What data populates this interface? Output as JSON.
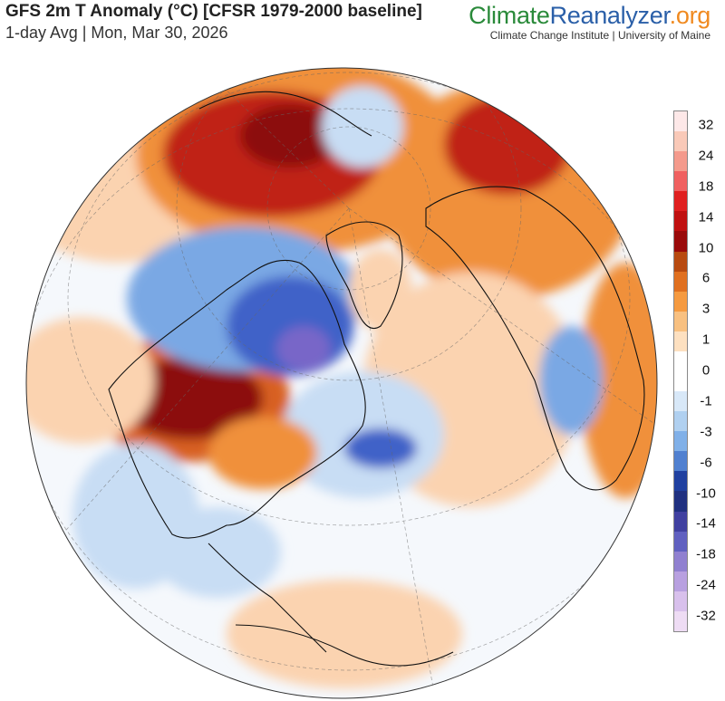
{
  "header": {
    "title": "GFS 2m T Anomaly (°C) [CFSR 1979-2000 baseline]",
    "subtitle": "1-day Avg | Mon, Mar 30, 2026"
  },
  "brand": {
    "part1": "Climate",
    "part2": "Reanalyzer",
    "part3": ".org",
    "affiliation": "Climate Change Institute | University of Maine"
  },
  "legend": {
    "labels": [
      "32",
      "24",
      "18",
      "14",
      "10",
      "6",
      "3",
      "1",
      "0",
      "-1",
      "-3",
      "-6",
      "-10",
      "-14",
      "-18",
      "-24",
      "-32"
    ],
    "colors": [
      "#fde8e8",
      "#f9c9b8",
      "#f49a8c",
      "#f06060",
      "#e02020",
      "#c01010",
      "#9a0a0a",
      "#b84a10",
      "#e07020",
      "#f59a40",
      "#f8c080",
      "#fde0c0",
      "#ffffff",
      "#ffffff",
      "#d8e8f8",
      "#b0d0f0",
      "#80b0e8",
      "#5080d0",
      "#2040a0",
      "#203080",
      "#4040a0",
      "#6060c0",
      "#9080d0",
      "#b8a0e0",
      "#d8c0ec",
      "#eedcf4"
    ]
  },
  "map_colors": {
    "ocean_neutral": "#f4f7fb",
    "warm_light": "#fbd3b0",
    "warm": "#f0903a",
    "warm_strong": "#d86020",
    "hot": "#b81818",
    "very_hot": "#8c0c0c",
    "cool_light": "#c8ddf4",
    "cool": "#7aa8e4",
    "cold": "#3f62c8",
    "very_cold": "#7866c8",
    "coast": "#111111"
  }
}
